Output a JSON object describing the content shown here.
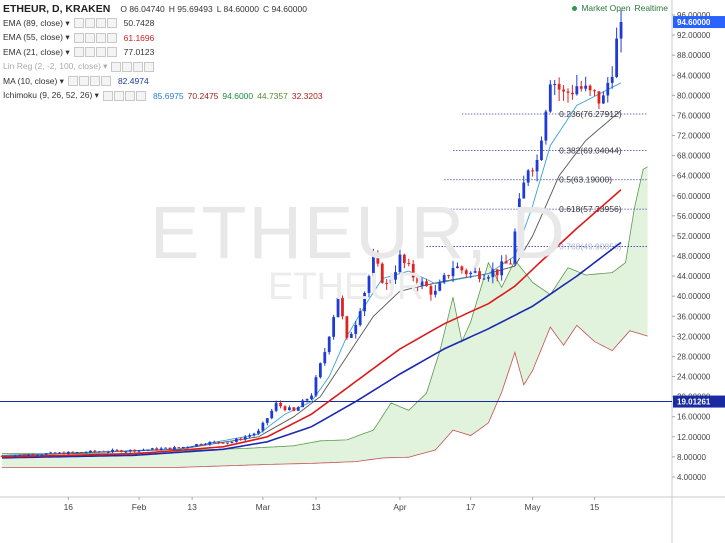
{
  "header": {
    "symbol": "ETHEUR, D, KRAKEN",
    "open": "O 86.04740",
    "high": "H 95.69493",
    "low": "L 84.60000",
    "close": "C 94.60000",
    "status": "Market Open",
    "mode": "Realtime"
  },
  "indicators": [
    {
      "label": "EMA (89, close)",
      "value": "50.7428",
      "color": "#333333"
    },
    {
      "label": "EMA (55, close)",
      "value": "61.1696",
      "color": "#cc2222"
    },
    {
      "label": "EMA (21, close)",
      "value": "77.0123",
      "color": "#333333"
    },
    {
      "label": "Lin Reg (2, -2, 100, close)",
      "value": "",
      "color": "#aaaaaa"
    },
    {
      "label": "MA (10, close)",
      "value": "82.4974",
      "color": "#1a3aa0"
    },
    {
      "label": "Ichimoku (9, 26, 52, 26)",
      "values": [
        "85.6975",
        "70.2475",
        "94.6000",
        "44.7357",
        "32.3203"
      ],
      "value_colors": [
        "#2b7bd6",
        "#9c2020",
        "#208a3a",
        "#5a8a2a",
        "#b02020"
      ]
    }
  ],
  "watermark": {
    "main": "ETHEUR, D",
    "sub": "ETHEUR"
  },
  "chart_data": {
    "type": "candlestick",
    "ylim": [
      0,
      97
    ],
    "y_ticks": [
      "4.00000",
      "8.00000",
      "12.00000",
      "16.00000",
      "20.00000",
      "24.00000",
      "28.00000",
      "32.00000",
      "36.00000",
      "40.00000",
      "44.00000",
      "48.00000",
      "52.00000",
      "56.00000",
      "60.00000",
      "64.00000",
      "68.00000",
      "72.00000",
      "76.00000",
      "80.00000",
      "84.00000",
      "88.00000",
      "92.00000",
      "96.00000"
    ],
    "x_ticks": [
      {
        "label": "16",
        "day": 15
      },
      {
        "label": "Feb",
        "day": 31
      },
      {
        "label": "13",
        "day": 43
      },
      {
        "label": "Mar",
        "day": 59
      },
      {
        "label": "13",
        "day": 71
      },
      {
        "label": "Apr",
        "day": 90
      },
      {
        "label": "17",
        "day": 106
      },
      {
        "label": "May",
        "day": 120
      },
      {
        "label": "15",
        "day": 134
      }
    ],
    "x_range": [
      0,
      147
    ],
    "current_price": {
      "label": "94.60000",
      "value": 94.6,
      "color": "#2962ff"
    },
    "horizontal_level": {
      "label": "19.01261",
      "value": 19.01261,
      "color": "#1a2aa0"
    },
    "fibonacci": [
      {
        "label": "0.236(76.27912)",
        "value": 76.27912
      },
      {
        "label": "0.382(69.04044)",
        "value": 69.04044
      },
      {
        "label": "0.5(63.19000)",
        "value": 63.19
      },
      {
        "label": "0.618(57.33956)",
        "value": 57.33956
      },
      {
        "label": "0.768(49.90856)",
        "value": 49.90856
      }
    ],
    "key_prices": [
      {
        "day": 0,
        "price": 8.2
      },
      {
        "day": 10,
        "price": 8.6
      },
      {
        "day": 20,
        "price": 9.0
      },
      {
        "day": 30,
        "price": 9.3
      },
      {
        "day": 40,
        "price": 9.8
      },
      {
        "day": 46,
        "price": 10.8
      },
      {
        "day": 52,
        "price": 11.0
      },
      {
        "day": 58,
        "price": 13.0
      },
      {
        "day": 62,
        "price": 18.5
      },
      {
        "day": 66,
        "price": 17.0
      },
      {
        "day": 70,
        "price": 20.5
      },
      {
        "day": 73,
        "price": 29.0
      },
      {
        "day": 76,
        "price": 40.0
      },
      {
        "day": 78,
        "price": 31.0
      },
      {
        "day": 80,
        "price": 35.0
      },
      {
        "day": 84,
        "price": 47.0
      },
      {
        "day": 87,
        "price": 42.0
      },
      {
        "day": 90,
        "price": 47.5
      },
      {
        "day": 94,
        "price": 43.0
      },
      {
        "day": 98,
        "price": 40.5
      },
      {
        "day": 102,
        "price": 46.0
      },
      {
        "day": 106,
        "price": 44.5
      },
      {
        "day": 112,
        "price": 45.0
      },
      {
        "day": 115,
        "price": 47.0
      },
      {
        "day": 117,
        "price": 58.0
      },
      {
        "day": 119,
        "price": 66.0
      },
      {
        "day": 121,
        "price": 67.0
      },
      {
        "day": 124,
        "price": 84.0
      },
      {
        "day": 127,
        "price": 80.0
      },
      {
        "day": 130,
        "price": 82.0
      },
      {
        "day": 133,
        "price": 80.0
      },
      {
        "day": 136,
        "price": 79.0
      },
      {
        "day": 138,
        "price": 86.0
      },
      {
        "day": 140,
        "price": 94.6
      }
    ],
    "series": [
      {
        "name": "EMA (89, close)",
        "color": "#1a2ab0",
        "points": [
          [
            0,
            7.8
          ],
          [
            30,
            8.3
          ],
          [
            50,
            9.5
          ],
          [
            60,
            11.0
          ],
          [
            70,
            14.0
          ],
          [
            80,
            19.0
          ],
          [
            90,
            24.5
          ],
          [
            100,
            29.5
          ],
          [
            110,
            33.5
          ],
          [
            120,
            38.0
          ],
          [
            130,
            44.0
          ],
          [
            140,
            50.7
          ]
        ]
      },
      {
        "name": "EMA (55, close)",
        "color": "#dd1a1a",
        "points": [
          [
            0,
            8.0
          ],
          [
            30,
            8.6
          ],
          [
            50,
            10.0
          ],
          [
            60,
            12.0
          ],
          [
            70,
            16.5
          ],
          [
            80,
            23.0
          ],
          [
            90,
            29.5
          ],
          [
            100,
            34.5
          ],
          [
            110,
            38.5
          ],
          [
            116,
            42.0
          ],
          [
            122,
            47.0
          ],
          [
            130,
            53.5
          ],
          [
            140,
            61.2
          ]
        ]
      },
      {
        "name": "EMA (21, close)",
        "color": "#555555",
        "points": [
          [
            0,
            8.2
          ],
          [
            40,
            9.5
          ],
          [
            58,
            12.0
          ],
          [
            66,
            16.0
          ],
          [
            72,
            20.0
          ],
          [
            78,
            28.0
          ],
          [
            84,
            36.0
          ],
          [
            90,
            41.0
          ],
          [
            100,
            43.0
          ],
          [
            110,
            44.5
          ],
          [
            116,
            46.0
          ],
          [
            120,
            52.0
          ],
          [
            126,
            64.0
          ],
          [
            132,
            71.0
          ],
          [
            140,
            77.0
          ]
        ]
      },
      {
        "name": "MA (10, close)",
        "color": "#3aa0d6",
        "points": [
          [
            0,
            8.3
          ],
          [
            40,
            9.6
          ],
          [
            58,
            12.5
          ],
          [
            64,
            16.5
          ],
          [
            70,
            19.0
          ],
          [
            74,
            24.0
          ],
          [
            78,
            32.0
          ],
          [
            82,
            38.0
          ],
          [
            86,
            43.5
          ],
          [
            92,
            45.0
          ],
          [
            98,
            42.5
          ],
          [
            104,
            43.5
          ],
          [
            110,
            44.5
          ],
          [
            116,
            48.0
          ],
          [
            120,
            58.0
          ],
          [
            124,
            70.0
          ],
          [
            130,
            78.0
          ],
          [
            140,
            82.5
          ]
        ]
      }
    ]
  }
}
